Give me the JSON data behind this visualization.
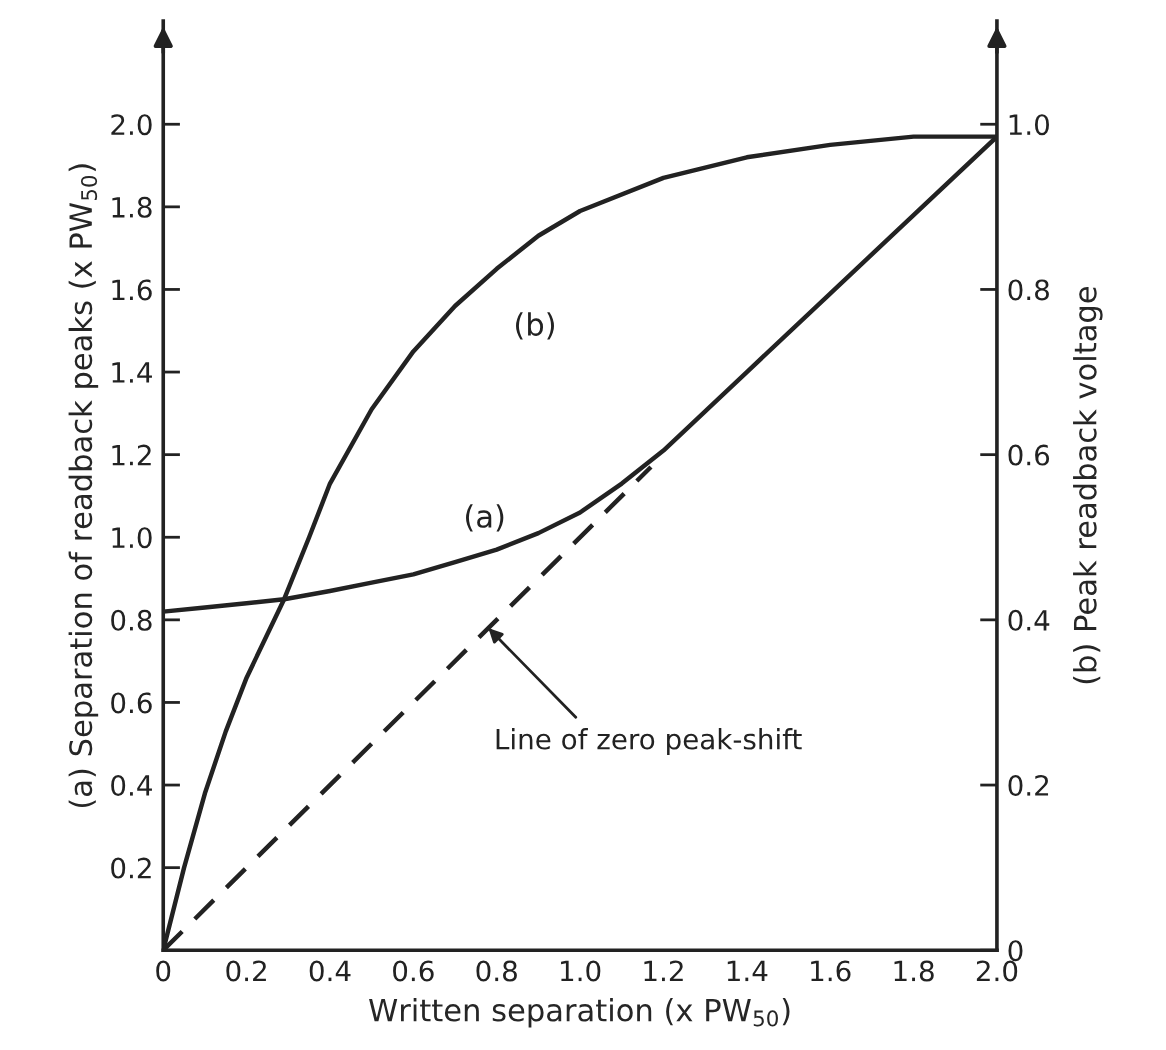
{
  "chart_data": {
    "type": "line",
    "xlabel": "Written separation (x PW$_{50}$)",
    "ylabel": "(a) Separation of readback peaks (x PW$_{50}$)",
    "y2label": "(b) Peak readback voltage",
    "xlim": [
      0,
      2.0
    ],
    "xticks": [
      0,
      0.2,
      0.4,
      0.6,
      0.8,
      {
        "value": 1.0,
        "label": "1.0"
      },
      1.2,
      1.4,
      1.6,
      1.8,
      {
        "value": 2.0,
        "label": "2.0"
      }
    ],
    "ylim": [
      0,
      2.25
    ],
    "yticks": [
      {
        "value": 0,
        "label": null
      },
      0.2,
      0.4,
      0.6,
      0.8,
      {
        "value": 1.0,
        "label": "1.0"
      },
      1.2,
      1.4,
      1.6,
      1.8,
      {
        "value": 2.0,
        "label": "2.0"
      }
    ],
    "y2lim": [
      0,
      1.125
    ],
    "y2ticks": [
      0,
      0.2,
      0.4,
      0.6,
      0.8,
      {
        "value": 1.0,
        "label": "1.0"
      }
    ],
    "grid": false,
    "legend": false,
    "marker": "none",
    "series": [
      {
        "name": "(a)",
        "color": "#222222",
        "line_style": "solid",
        "x": [
          0,
          0.1,
          0.2,
          0.29,
          0.4,
          0.5,
          0.6,
          0.7,
          0.8,
          0.9,
          1.0,
          1.1,
          1.2,
          1.4,
          1.6,
          1.8,
          2.0
        ],
        "values": [
          0.82,
          0.83,
          0.84,
          0.85,
          0.87,
          0.89,
          0.91,
          0.94,
          0.97,
          1.01,
          1.06,
          1.13,
          1.21,
          1.4,
          1.59,
          1.78,
          1.97
        ]
      },
      {
        "name": "(b)",
        "color": "#222222",
        "line_style": "solid",
        "axis": "y2",
        "x": [
          0,
          0.05,
          0.1,
          0.15,
          0.2,
          0.29,
          0.35,
          0.4,
          0.5,
          0.6,
          0.7,
          0.8,
          0.9,
          1.0,
          1.2,
          1.4,
          1.6,
          1.8,
          2.0
        ],
        "values": [
          0,
          0.1,
          0.19,
          0.265,
          0.33,
          0.425,
          0.5,
          0.565,
          0.655,
          0.725,
          0.78,
          0.825,
          0.865,
          0.895,
          0.935,
          0.96,
          0.975,
          0.985,
          0.985
        ]
      },
      {
        "color": "#222222",
        "line_style": "dashed",
        "x": [
          0,
          1.17
        ],
        "values": [
          0,
          1.17
        ]
      }
    ],
    "annotations": [
      {
        "text": "Line of zero peak-shift",
        "x": 0.78,
        "y": 0.78
      }
    ]
  }
}
